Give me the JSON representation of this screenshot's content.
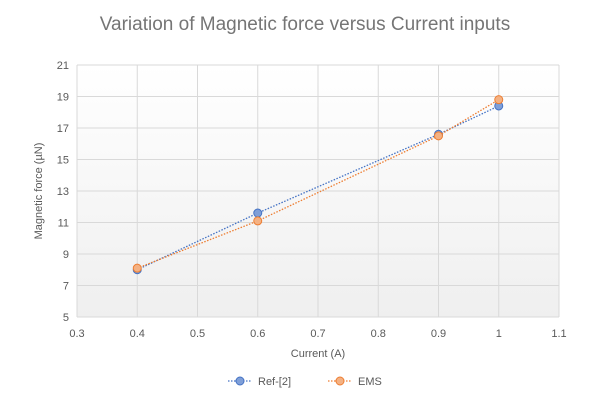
{
  "chart_data": {
    "type": "line",
    "title": "Variation of Magnetic force versus Current inputs",
    "xlabel": "Current (A)",
    "ylabel": "Magnetic force (µN)",
    "xlim": [
      0.3,
      1.1
    ],
    "ylim": [
      5,
      21
    ],
    "xticks": [
      0.3,
      0.4,
      0.5,
      0.6,
      0.7,
      0.8,
      0.9,
      1,
      1.1
    ],
    "yticks": [
      5,
      7,
      9,
      11,
      13,
      15,
      17,
      19,
      21
    ],
    "grid": true,
    "legend_position": "bottom",
    "series": [
      {
        "name": "Ref-[2]",
        "color": "#4472c4",
        "x": [
          0.4,
          0.6,
          0.9,
          1.0
        ],
        "y": [
          8.0,
          11.6,
          16.6,
          18.4
        ]
      },
      {
        "name": "EMS",
        "color": "#ed7d31",
        "x": [
          0.4,
          0.6,
          0.9,
          1.0
        ],
        "y": [
          8.1,
          11.1,
          16.5,
          18.8
        ]
      }
    ]
  }
}
